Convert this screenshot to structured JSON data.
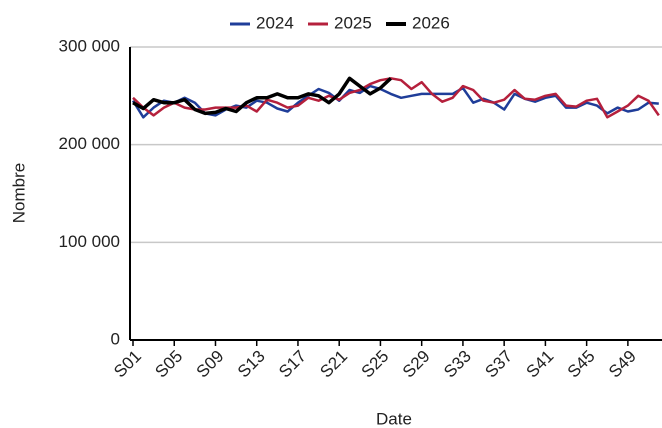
{
  "chart_data": {
    "type": "line",
    "x_label": "Date",
    "y_label": "Nombre",
    "categories": [
      "S01",
      null,
      null,
      null,
      "S05",
      null,
      null,
      null,
      "S09",
      null,
      null,
      null,
      "S13",
      null,
      null,
      null,
      "S17",
      null,
      null,
      null,
      "S21",
      null,
      null,
      null,
      "S25",
      null,
      null,
      null,
      "S29",
      null,
      null,
      null,
      "S33",
      null,
      null,
      null,
      "S37",
      null,
      null,
      null,
      "S41",
      null,
      null,
      null,
      "S45",
      null,
      null,
      null,
      "S49",
      null,
      null,
      null
    ],
    "series": [
      {
        "name": "2024",
        "color": "#1f3d99",
        "values": [
          245000,
          228000,
          238000,
          245000,
          243000,
          248000,
          243000,
          232000,
          230000,
          236000,
          240000,
          238000,
          245000,
          243000,
          237000,
          234000,
          243000,
          250000,
          257000,
          253000,
          245000,
          256000,
          253000,
          260000,
          257000,
          252000,
          248000,
          250000,
          252000,
          252000,
          252000,
          252000,
          258000,
          243000,
          247000,
          243000,
          236000,
          252000,
          247000,
          244000,
          248000,
          250000,
          238000,
          238000,
          243000,
          240000,
          232000,
          238000,
          234000,
          236000,
          243000,
          242000
        ]
      },
      {
        "name": "2025",
        "color": "#b5203c",
        "values": [
          248000,
          238000,
          230000,
          238000,
          243000,
          238000,
          236000,
          236000,
          238000,
          238000,
          238000,
          240000,
          234000,
          246000,
          243000,
          238000,
          240000,
          248000,
          245000,
          250000,
          246000,
          253000,
          256000,
          262000,
          266000,
          268000,
          266000,
          257000,
          264000,
          252000,
          244000,
          248000,
          260000,
          256000,
          245000,
          243000,
          246000,
          256000,
          247000,
          246000,
          250000,
          252000,
          240000,
          239000,
          245000,
          247000,
          228000,
          234000,
          240000,
          250000,
          245000,
          230000
        ]
      },
      {
        "name": "2026",
        "color": "#000000",
        "values": [
          243000,
          237000,
          246000,
          243000,
          243000,
          246000,
          236000,
          232000,
          233000,
          237000,
          234000,
          243000,
          248000,
          248000,
          252000,
          248000,
          248000,
          252000,
          250000,
          243000,
          252000,
          268000,
          260000,
          252000,
          258000,
          268000,
          null,
          null,
          null,
          null,
          null,
          null,
          null,
          null,
          null,
          null,
          null,
          null,
          null,
          null,
          null,
          null,
          null,
          null,
          null,
          null,
          null,
          null,
          null,
          null,
          null,
          null
        ]
      }
    ],
    "ylim": [
      0,
      300000
    ],
    "yticks": [
      0,
      {
        "value": 100000,
        "label": "100 000"
      },
      {
        "value": 200000,
        "label": "200 000"
      },
      {
        "value": 300000,
        "label": "300 000"
      }
    ],
    "grid": true,
    "legend": "top"
  }
}
